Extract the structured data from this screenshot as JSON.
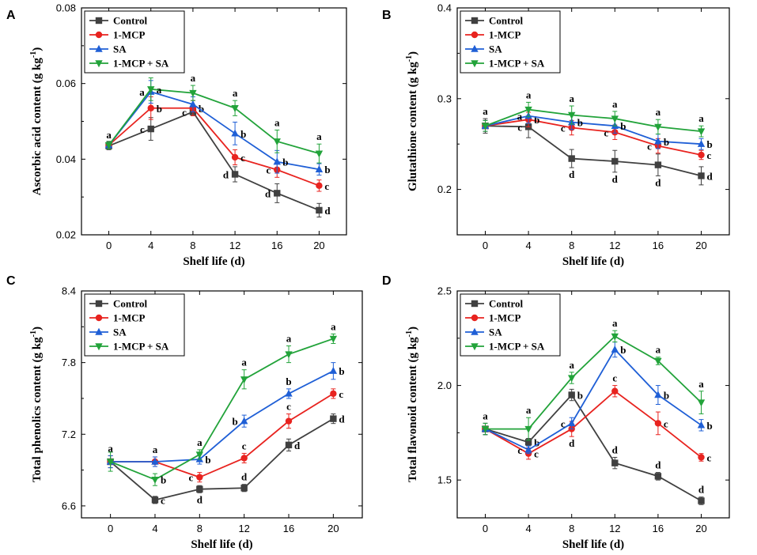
{
  "colors": {
    "Control": "#404040",
    "1-MCP": "#e8231f",
    "SA": "#1f5fd6",
    "1-MCP + SA": "#22a33a"
  },
  "chart_data": [
    {
      "type": "line",
      "panel": "A",
      "xlabel": "Shelf life (d)",
      "ylabel_main": "Ascorbic acid content (g kg",
      "ylabel_sup": "-1",
      "ylabel_end": ")",
      "x": [
        0,
        4,
        8,
        12,
        16,
        20
      ],
      "xticks": [
        0,
        4,
        8,
        12,
        16,
        20
      ],
      "xlim": [
        -2.6,
        22.6
      ],
      "ylim": [
        0.02,
        0.08
      ],
      "yticks": [
        0.02,
        0.04,
        0.06,
        0.08
      ],
      "ytick_labels": [
        "0.02",
        "0.04",
        "0.06",
        "0.08"
      ],
      "legend_position": "top-left",
      "series": [
        {
          "name": "Control",
          "marker": "square",
          "values": [
            0.0435,
            0.048,
            0.0525,
            0.036,
            0.031,
            0.0265
          ],
          "errors": [
            0.001,
            0.003,
            0.001,
            0.002,
            0.0025,
            0.0018
          ],
          "labels": [
            "a",
            "c",
            "c",
            "d",
            "d",
            "d"
          ],
          "label_pos": [
            "above",
            "left",
            "left",
            "left",
            "left",
            "right"
          ]
        },
        {
          "name": "1-MCP",
          "marker": "circle",
          "values": [
            0.0437,
            0.0535,
            0.0535,
            0.0405,
            0.0372,
            0.033
          ],
          "errors": [
            0.001,
            0.003,
            0.002,
            0.002,
            0.002,
            0.0015
          ],
          "labels": [
            "",
            "b",
            "b",
            "c",
            "c",
            "c"
          ],
          "label_pos": [
            "",
            "right",
            "right",
            "right",
            "left",
            "right"
          ]
        },
        {
          "name": "SA",
          "marker": "triangle-up",
          "values": [
            0.0437,
            0.0578,
            0.0545,
            0.0468,
            0.0393,
            0.0373
          ],
          "errors": [
            0.001,
            0.003,
            0.002,
            0.003,
            0.003,
            0.0015
          ],
          "labels": [
            "",
            "a",
            "",
            "b",
            "b",
            "b"
          ],
          "label_pos": [
            "",
            "left",
            "",
            "right",
            "right",
            "right"
          ]
        },
        {
          "name": "1-MCP + SA",
          "marker": "triangle-down",
          "values": [
            0.0437,
            0.0585,
            0.0575,
            0.0535,
            0.0447,
            0.0415
          ],
          "errors": [
            0.001,
            0.003,
            0.002,
            0.002,
            0.003,
            0.0025
          ],
          "labels": [
            "",
            "a",
            "a",
            "a",
            "a",
            "a"
          ],
          "label_pos": [
            "",
            "right",
            "above",
            "above",
            "above",
            "above"
          ]
        }
      ]
    },
    {
      "type": "line",
      "panel": "B",
      "xlabel": "Shelf life (d)",
      "ylabel_main": "Glutathione content (g kg",
      "ylabel_sup": "-1",
      "ylabel_end": ")",
      "x": [
        0,
        4,
        8,
        12,
        16,
        20
      ],
      "xticks": [
        0,
        4,
        8,
        12,
        16,
        20
      ],
      "xlim": [
        -2.6,
        22.6
      ],
      "ylim": [
        0.15,
        0.4
      ],
      "yticks": [
        0.2,
        0.3,
        0.4
      ],
      "ytick_labels": [
        "0.2",
        "0.3",
        "0.4"
      ],
      "legend_position": "top-left",
      "series": [
        {
          "name": "Control",
          "marker": "square",
          "values": [
            0.27,
            0.269,
            0.234,
            0.231,
            0.227,
            0.215
          ],
          "errors": [
            0.008,
            0.012,
            0.01,
            0.012,
            0.012,
            0.01
          ],
          "labels": [
            "a",
            "c",
            "d",
            "d",
            "d",
            "d"
          ],
          "label_pos": [
            "above",
            "left",
            "below",
            "below",
            "below",
            "right"
          ]
        },
        {
          "name": "1-MCP",
          "marker": "circle",
          "values": [
            0.27,
            0.277,
            0.268,
            0.263,
            0.248,
            0.238
          ],
          "errors": [
            0.006,
            0.008,
            0.008,
            0.008,
            0.008,
            0.005
          ],
          "labels": [
            "",
            "b",
            "c",
            "c",
            "c",
            "c"
          ],
          "label_pos": [
            "",
            "right",
            "left",
            "left",
            "left",
            "right"
          ]
        },
        {
          "name": "SA",
          "marker": "triangle-up",
          "values": [
            0.27,
            0.281,
            0.274,
            0.27,
            0.253,
            0.25
          ],
          "errors": [
            0.006,
            0.008,
            0.008,
            0.008,
            0.008,
            0.006
          ],
          "labels": [
            "",
            "a",
            "b",
            "b",
            "b",
            "b"
          ],
          "label_pos": [
            "",
            "left",
            "right",
            "right",
            "right",
            "right"
          ]
        },
        {
          "name": "1-MCP + SA",
          "marker": "triangle-down",
          "values": [
            0.27,
            0.288,
            0.282,
            0.278,
            0.269,
            0.264
          ],
          "errors": [
            0.006,
            0.008,
            0.01,
            0.008,
            0.008,
            0.006
          ],
          "labels": [
            "",
            "a",
            "a",
            "a",
            "a",
            "a"
          ],
          "label_pos": [
            "",
            "above",
            "above",
            "above",
            "above",
            "above"
          ]
        }
      ]
    },
    {
      "type": "line",
      "panel": "C",
      "xlabel": "Shelf life (d)",
      "ylabel_main": "Total phenolics content (g kg",
      "ylabel_sup": "-1",
      "ylabel_end": ")",
      "x": [
        0,
        4,
        8,
        12,
        16,
        20
      ],
      "xticks": [
        0,
        4,
        8,
        12,
        16,
        20
      ],
      "xlim": [
        -2.6,
        22.6
      ],
      "ylim": [
        6.5,
        8.4
      ],
      "yticks": [
        6.6,
        7.2,
        7.8,
        8.4
      ],
      "ytick_labels": [
        "6.6",
        "7.2",
        "7.8",
        "8.4"
      ],
      "legend_position": "top-left",
      "series": [
        {
          "name": "Control",
          "marker": "square",
          "values": [
            6.97,
            6.65,
            6.74,
            6.75,
            7.11,
            7.33
          ],
          "errors": [
            0.05,
            0.03,
            0.03,
            0.03,
            0.05,
            0.04
          ],
          "labels": [
            "a",
            "c",
            "d",
            "d",
            "d",
            "d"
          ],
          "label_pos": [
            "above",
            "right",
            "below",
            "above",
            "right",
            "right"
          ]
        },
        {
          "name": "1-MCP",
          "marker": "circle",
          "values": [
            6.97,
            6.97,
            6.84,
            7.0,
            7.31,
            7.54
          ],
          "errors": [
            0.05,
            0.04,
            0.04,
            0.04,
            0.06,
            0.04
          ],
          "labels": [
            "",
            "a",
            "c",
            "c",
            "c",
            "c"
          ],
          "label_pos": [
            "",
            "above",
            "left",
            "above",
            "above",
            "right"
          ]
        },
        {
          "name": "SA",
          "marker": "triangle-up",
          "values": [
            6.97,
            6.97,
            6.99,
            7.31,
            7.54,
            7.73
          ],
          "errors": [
            0.05,
            0.04,
            0.04,
            0.05,
            0.04,
            0.07
          ],
          "labels": [
            "",
            "",
            "b",
            "b",
            "b",
            "b"
          ],
          "label_pos": [
            "",
            "",
            "right",
            "left",
            "above",
            "right"
          ]
        },
        {
          "name": "1-MCP + SA",
          "marker": "triangle-down",
          "values": [
            6.97,
            6.82,
            7.03,
            7.66,
            7.87,
            8.0
          ],
          "errors": [
            0.08,
            0.05,
            0.04,
            0.08,
            0.07,
            0.04
          ],
          "labels": [
            "",
            "b",
            "a",
            "a",
            "a",
            "a"
          ],
          "label_pos": [
            "",
            "right",
            "above",
            "above",
            "above",
            "above"
          ]
        }
      ]
    },
    {
      "type": "line",
      "panel": "D",
      "xlabel": "Shelf life (d)",
      "ylabel_main": "Total flavonoid content (g kg",
      "ylabel_sup": "-1",
      "ylabel_end": ")",
      "x": [
        0,
        4,
        8,
        12,
        16,
        20
      ],
      "xticks": [
        0,
        4,
        8,
        12,
        16,
        20
      ],
      "xlim": [
        -2.6,
        22.6
      ],
      "ylim": [
        1.3,
        2.5
      ],
      "yticks": [
        1.5,
        2.0,
        2.5
      ],
      "ytick_labels": [
        "1.5",
        "2.0",
        "2.5"
      ],
      "legend_position": "top-left",
      "series": [
        {
          "name": "Control",
          "marker": "square",
          "values": [
            1.77,
            1.7,
            1.95,
            1.59,
            1.52,
            1.39
          ],
          "errors": [
            0.03,
            0.02,
            0.03,
            0.03,
            0.02,
            0.02
          ],
          "labels": [
            "a",
            "b",
            "b",
            "d",
            "d",
            "d"
          ],
          "label_pos": [
            "above",
            "right",
            "right",
            "above",
            "above",
            "above"
          ]
        },
        {
          "name": "1-MCP",
          "marker": "circle",
          "values": [
            1.77,
            1.64,
            1.77,
            1.97,
            1.8,
            1.62
          ],
          "errors": [
            0.03,
            0.03,
            0.04,
            0.03,
            0.06,
            0.02
          ],
          "labels": [
            "",
            "c",
            "d",
            "c",
            "c",
            "c"
          ],
          "label_pos": [
            "",
            "right",
            "below",
            "above",
            "right",
            "right"
          ]
        },
        {
          "name": "SA",
          "marker": "triangle-up",
          "values": [
            1.77,
            1.66,
            1.8,
            2.19,
            1.95,
            1.79
          ],
          "errors": [
            0.03,
            0.02,
            0.03,
            0.04,
            0.05,
            0.03
          ],
          "labels": [
            "",
            "c",
            "c",
            "b",
            "b",
            "b"
          ],
          "label_pos": [
            "",
            "left",
            "left",
            "right",
            "right",
            "right"
          ]
        },
        {
          "name": "1-MCP + SA",
          "marker": "triangle-down",
          "values": [
            1.77,
            1.77,
            2.04,
            2.26,
            2.13,
            1.91
          ],
          "errors": [
            0.03,
            0.06,
            0.03,
            0.03,
            0.02,
            0.06
          ],
          "labels": [
            "",
            "a",
            "a",
            "a",
            "a",
            "a"
          ],
          "label_pos": [
            "",
            "above",
            "above",
            "above",
            "above",
            "above"
          ]
        }
      ]
    }
  ]
}
